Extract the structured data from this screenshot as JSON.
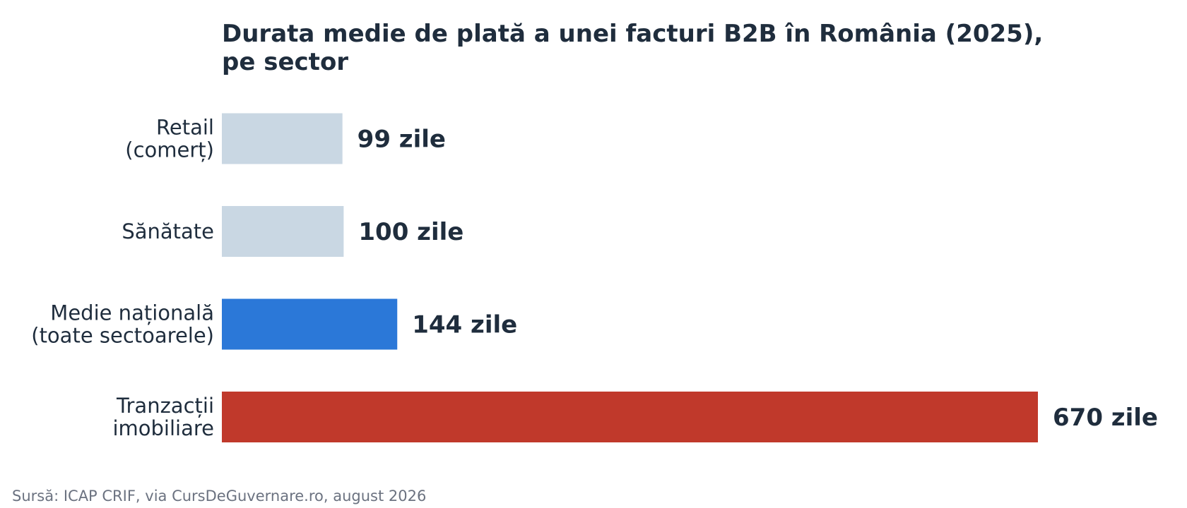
{
  "chart_data": {
    "type": "bar",
    "orientation": "horizontal",
    "title_lines": [
      "Durata medie de plată a unei facturi B2B în România (2025),",
      "pe sector"
    ],
    "categories": [
      [
        "Retail",
        "(comerț)"
      ],
      [
        "Sănătate"
      ],
      [
        "Medie națională",
        "(toate sectoarele)"
      ],
      [
        "Tranzacții",
        "imobiliare"
      ]
    ],
    "values": [
      99,
      100,
      144,
      670
    ],
    "value_labels": [
      "99 zile",
      "100 zile",
      "144 zile",
      "670 zile"
    ],
    "bar_colors": [
      "#c9d7e3",
      "#c9d7e3",
      "#2b78d8",
      "#c0392b"
    ],
    "xlim": [
      0,
      670
    ],
    "grid": false,
    "legend": "none"
  },
  "source": "Sursă: ICAP CRIF, via CursDeGuvernare.ro, august 2026"
}
